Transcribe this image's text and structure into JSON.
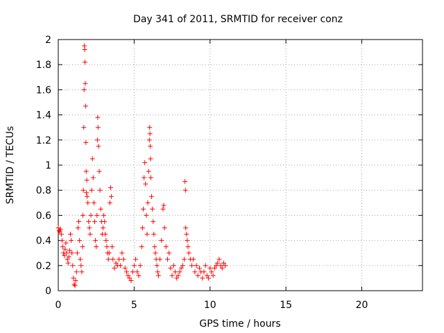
{
  "chart_data": {
    "type": "scatter",
    "title": "Day 341 of 2011, SRMTID for receiver conz",
    "xlabel": "GPS time / hours",
    "ylabel": "SRMTID / TECUs",
    "xlim": [
      0,
      24
    ],
    "ylim": [
      0,
      2
    ],
    "grid": true,
    "marker": "+",
    "marker_color": "#ff0000",
    "xticks": [
      0,
      5,
      10,
      15,
      20
    ],
    "xtick_labels": [
      "0",
      "5",
      "10",
      "15",
      "20"
    ],
    "yticks": [
      0,
      0.2,
      0.4,
      0.6,
      0.8,
      1.0,
      1.2,
      1.4,
      1.6,
      1.8,
      2.0
    ],
    "ytick_labels": [
      "0",
      "0.2",
      "0.4",
      "0.6",
      "0.8",
      "1",
      "1.2",
      "1.4",
      "1.6",
      "1.8",
      "2"
    ],
    "series": [
      {
        "name": "SRMTID",
        "points": [
          [
            0.0,
            0.5
          ],
          [
            0.05,
            0.48
          ],
          [
            0.1,
            0.47
          ],
          [
            0.15,
            0.49
          ],
          [
            0.2,
            0.45
          ],
          [
            0.25,
            0.4
          ],
          [
            0.3,
            0.35
          ],
          [
            0.35,
            0.3
          ],
          [
            0.4,
            0.28
          ],
          [
            0.45,
            0.33
          ],
          [
            0.5,
            0.38
          ],
          [
            0.55,
            0.3
          ],
          [
            0.6,
            0.25
          ],
          [
            0.65,
            0.22
          ],
          [
            0.7,
            0.27
          ],
          [
            0.75,
            0.32
          ],
          [
            0.8,
            0.45
          ],
          [
            0.85,
            0.4
          ],
          [
            0.9,
            0.3
          ],
          [
            0.95,
            0.2
          ],
          [
            1.0,
            0.1
          ],
          [
            1.05,
            0.05
          ],
          [
            1.1,
            0.04
          ],
          [
            1.15,
            0.08
          ],
          [
            1.2,
            0.15
          ],
          [
            1.25,
            0.3
          ],
          [
            1.3,
            0.5
          ],
          [
            1.35,
            0.55
          ],
          [
            1.4,
            0.4
          ],
          [
            1.45,
            0.25
          ],
          [
            1.5,
            0.2
          ],
          [
            1.55,
            0.15
          ],
          [
            1.6,
            0.35
          ],
          [
            1.62,
            0.6
          ],
          [
            1.65,
            0.8
          ],
          [
            1.68,
            1.3
          ],
          [
            1.7,
            1.6
          ],
          [
            1.72,
            1.95
          ],
          [
            1.74,
            1.92
          ],
          [
            1.76,
            1.82
          ],
          [
            1.78,
            1.65
          ],
          [
            1.8,
            1.47
          ],
          [
            1.82,
            1.18
          ],
          [
            1.84,
            0.95
          ],
          [
            1.86,
            0.78
          ],
          [
            1.88,
            0.88
          ],
          [
            1.9,
            0.75
          ],
          [
            1.95,
            0.7
          ],
          [
            2.0,
            0.55
          ],
          [
            2.05,
            0.5
          ],
          [
            2.1,
            0.45
          ],
          [
            2.15,
            0.6
          ],
          [
            2.2,
            0.8
          ],
          [
            2.25,
            1.05
          ],
          [
            2.3,
            0.9
          ],
          [
            2.35,
            0.7
          ],
          [
            2.4,
            0.55
          ],
          [
            2.45,
            0.4
          ],
          [
            2.5,
            0.35
          ],
          [
            2.55,
            0.6
          ],
          [
            2.58,
            1.2
          ],
          [
            2.6,
            1.38
          ],
          [
            2.62,
            1.3
          ],
          [
            2.65,
            1.15
          ],
          [
            2.7,
            0.95
          ],
          [
            2.75,
            0.8
          ],
          [
            2.8,
            0.65
          ],
          [
            2.85,
            0.55
          ],
          [
            2.9,
            0.45
          ],
          [
            2.95,
            0.5
          ],
          [
            3.0,
            0.6
          ],
          [
            3.05,
            0.55
          ],
          [
            3.1,
            0.45
          ],
          [
            3.15,
            0.4
          ],
          [
            3.2,
            0.35
          ],
          [
            3.25,
            0.3
          ],
          [
            3.3,
            0.25
          ],
          [
            3.35,
            0.3
          ],
          [
            3.4,
            0.7
          ],
          [
            3.45,
            0.82
          ],
          [
            3.5,
            0.75
          ],
          [
            3.55,
            0.35
          ],
          [
            3.6,
            0.25
          ],
          [
            3.7,
            0.18
          ],
          [
            3.8,
            0.22
          ],
          [
            3.9,
            0.2
          ],
          [
            4.0,
            0.25
          ],
          [
            4.1,
            0.2
          ],
          [
            4.2,
            0.3
          ],
          [
            4.3,
            0.25
          ],
          [
            4.4,
            0.18
          ],
          [
            4.5,
            0.15
          ],
          [
            4.6,
            0.12
          ],
          [
            4.7,
            0.1
          ],
          [
            4.8,
            0.08
          ],
          [
            4.9,
            0.15
          ],
          [
            5.0,
            0.2
          ],
          [
            5.1,
            0.25
          ],
          [
            5.2,
            0.15
          ],
          [
            5.3,
            0.12
          ],
          [
            5.4,
            0.2
          ],
          [
            5.5,
            0.35
          ],
          [
            5.55,
            0.5
          ],
          [
            5.6,
            0.65
          ],
          [
            5.65,
            0.9
          ],
          [
            5.7,
            1.02
          ],
          [
            5.75,
            0.85
          ],
          [
            5.8,
            0.6
          ],
          [
            5.85,
            0.45
          ],
          [
            5.9,
            0.7
          ],
          [
            5.95,
            0.95
          ],
          [
            6.0,
            1.2
          ],
          [
            6.02,
            1.3
          ],
          [
            6.04,
            1.25
          ],
          [
            6.06,
            1.15
          ],
          [
            6.08,
            1.05
          ],
          [
            6.1,
            0.9
          ],
          [
            6.15,
            0.75
          ],
          [
            6.2,
            0.65
          ],
          [
            6.25,
            0.55
          ],
          [
            6.3,
            0.45
          ],
          [
            6.35,
            0.35
          ],
          [
            6.4,
            0.3
          ],
          [
            6.45,
            0.25
          ],
          [
            6.5,
            0.2
          ],
          [
            6.55,
            0.15
          ],
          [
            6.6,
            0.12
          ],
          [
            6.7,
            0.25
          ],
          [
            6.8,
            0.4
          ],
          [
            6.9,
            0.65
          ],
          [
            6.95,
            0.68
          ],
          [
            7.0,
            0.5
          ],
          [
            7.1,
            0.35
          ],
          [
            7.2,
            0.25
          ],
          [
            7.3,
            0.3
          ],
          [
            7.4,
            0.18
          ],
          [
            7.5,
            0.12
          ],
          [
            7.6,
            0.2
          ],
          [
            7.7,
            0.15
          ],
          [
            7.8,
            0.1
          ],
          [
            7.9,
            0.12
          ],
          [
            8.0,
            0.15
          ],
          [
            8.1,
            0.18
          ],
          [
            8.2,
            0.2
          ],
          [
            8.3,
            0.25
          ],
          [
            8.35,
            0.87
          ],
          [
            8.38,
            0.8
          ],
          [
            8.4,
            0.5
          ],
          [
            8.45,
            0.45
          ],
          [
            8.5,
            0.4
          ],
          [
            8.55,
            0.35
          ],
          [
            8.6,
            0.3
          ],
          [
            8.7,
            0.25
          ],
          [
            8.8,
            0.2
          ],
          [
            8.9,
            0.25
          ],
          [
            9.0,
            0.15
          ],
          [
            9.1,
            0.2
          ],
          [
            9.2,
            0.12
          ],
          [
            9.3,
            0.18
          ],
          [
            9.4,
            0.15
          ],
          [
            9.5,
            0.1
          ],
          [
            9.6,
            0.15
          ],
          [
            9.7,
            0.2
          ],
          [
            9.8,
            0.12
          ],
          [
            9.9,
            0.1
          ],
          [
            10.0,
            0.18
          ],
          [
            10.1,
            0.15
          ],
          [
            10.2,
            0.12
          ],
          [
            10.3,
            0.18
          ],
          [
            10.4,
            0.2
          ],
          [
            10.5,
            0.22
          ],
          [
            10.6,
            0.25
          ],
          [
            10.7,
            0.2
          ],
          [
            10.8,
            0.18
          ],
          [
            10.9,
            0.22
          ],
          [
            11.0,
            0.2
          ]
        ]
      }
    ]
  }
}
